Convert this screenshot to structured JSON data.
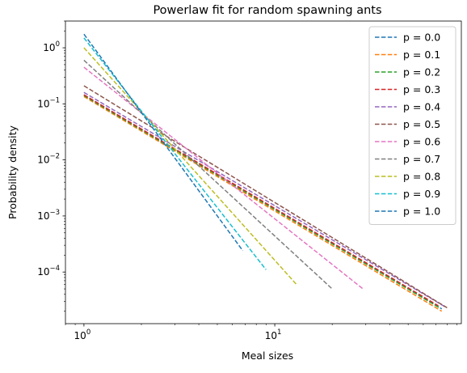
{
  "chart_data": {
    "type": "line",
    "title": "Powerlaw fit for random spawning ants",
    "xlabel": "Meal sizes",
    "ylabel": "Probability density",
    "xscale": "log",
    "yscale": "log",
    "xlim": [
      0.8,
      95
    ],
    "ylim": [
      1.2e-05,
      3
    ],
    "grid": false,
    "legend_position": "top-right",
    "line_style": "dashed",
    "x_ticks": [
      {
        "value": 1,
        "base": "10",
        "exp": "0"
      },
      {
        "value": 10,
        "base": "10",
        "exp": "1"
      }
    ],
    "y_ticks": [
      {
        "value": 0.0001,
        "base": "10",
        "exp": "−4"
      },
      {
        "value": 0.001,
        "base": "10",
        "exp": "−3"
      },
      {
        "value": 0.01,
        "base": "10",
        "exp": "−2"
      },
      {
        "value": 0.1,
        "base": "10",
        "exp": "−1"
      },
      {
        "value": 1,
        "base": "10",
        "exp": "0"
      }
    ],
    "series": [
      {
        "name": "p = 0.0",
        "color": "#1f77b4",
        "x": [
          1,
          75
        ],
        "y": [
          0.145,
          2.2e-05
        ]
      },
      {
        "name": "p = 0.1",
        "color": "#ff7f0e",
        "x": [
          1,
          75
        ],
        "y": [
          0.135,
          2e-05
        ]
      },
      {
        "name": "p = 0.2",
        "color": "#2ca02c",
        "x": [
          1,
          73
        ],
        "y": [
          0.14,
          2.3e-05
        ]
      },
      {
        "name": "p = 0.3",
        "color": "#d62728",
        "x": [
          1,
          72
        ],
        "y": [
          0.145,
          2.5e-05
        ]
      },
      {
        "name": "p = 0.4",
        "color": "#9467bd",
        "x": [
          1,
          78
        ],
        "y": [
          0.16,
          2.4e-05
        ]
      },
      {
        "name": "p = 0.5",
        "color": "#8c564b",
        "x": [
          1,
          80
        ],
        "y": [
          0.21,
          2.3e-05
        ]
      },
      {
        "name": "p = 0.6",
        "color": "#e377c2",
        "x": [
          1,
          29
        ],
        "y": [
          0.45,
          5e-05
        ]
      },
      {
        "name": "p = 0.7",
        "color": "#7f7f7f",
        "x": [
          1,
          20
        ],
        "y": [
          0.6,
          5e-05
        ]
      },
      {
        "name": "p = 0.8",
        "color": "#bcbd22",
        "x": [
          1,
          13
        ],
        "y": [
          1.0,
          6e-05
        ]
      },
      {
        "name": "p = 0.9",
        "color": "#17becf",
        "x": [
          1,
          9
        ],
        "y": [
          1.5,
          0.00011
        ]
      },
      {
        "name": "p = 1.0",
        "color": "#1f77b4",
        "x": [
          1,
          6.8
        ],
        "y": [
          1.75,
          0.00024
        ]
      }
    ]
  }
}
